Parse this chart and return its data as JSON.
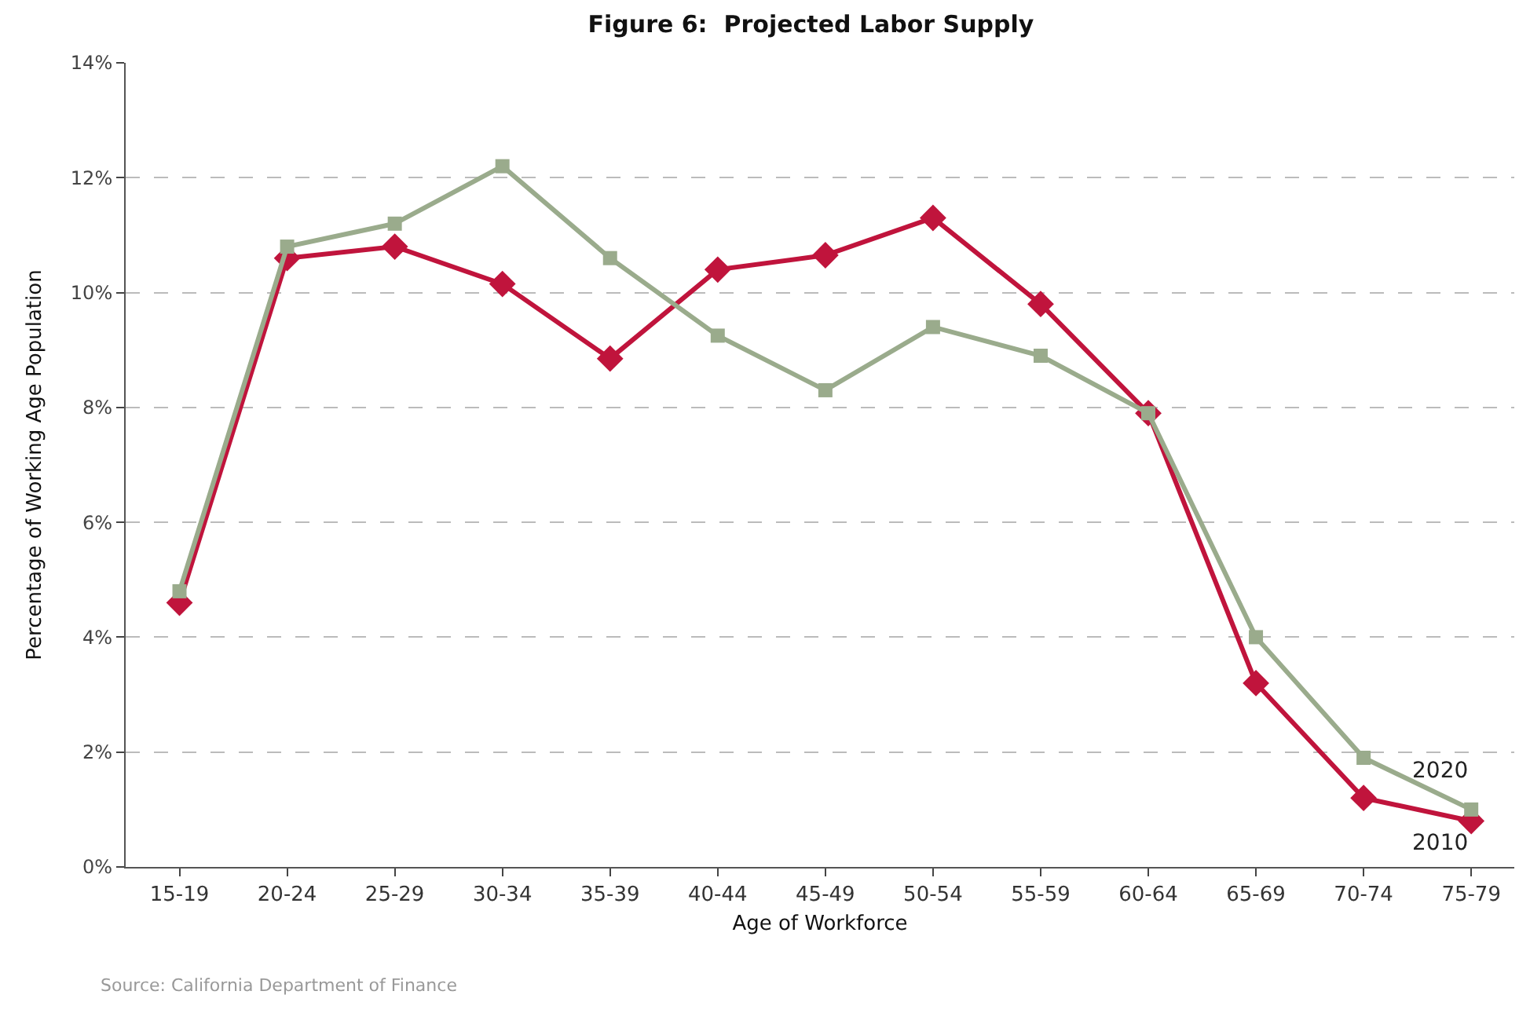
{
  "chart_data": {
    "type": "line",
    "title": "Figure 6:  Projected Labor Supply",
    "xlabel": "Age of Workforce",
    "ylabel": "Percentage of Working Age Population",
    "categories": [
      "15-19",
      "20-24",
      "25-29",
      "30-34",
      "35-39",
      "40-44",
      "45-49",
      "50-54",
      "55-59",
      "60-64",
      "65-69",
      "70-74",
      "75-79"
    ],
    "series": [
      {
        "name": "2010",
        "color": "#c0143c",
        "marker": "diamond",
        "values": [
          4.6,
          10.6,
          10.8,
          10.15,
          8.85,
          10.4,
          10.65,
          11.3,
          9.8,
          7.9,
          3.2,
          1.2,
          0.8
        ]
      },
      {
        "name": "2020",
        "color": "#9aab8c",
        "marker": "square",
        "values": [
          4.8,
          10.8,
          11.2,
          12.2,
          10.6,
          9.25,
          8.3,
          9.4,
          8.9,
          7.9,
          4.0,
          1.9,
          1.0
        ]
      }
    ],
    "ylim": [
      0,
      14
    ],
    "yticks": [
      {
        "value": 0,
        "label": "0%"
      },
      {
        "value": 2,
        "label": "2%"
      },
      {
        "value": 4,
        "label": "4%"
      },
      {
        "value": 6,
        "label": "6%"
      },
      {
        "value": 8,
        "label": "8%"
      },
      {
        "value": 10,
        "label": "10%"
      },
      {
        "value": 12,
        "label": "12%"
      },
      {
        "value": 14,
        "label": "14%"
      }
    ],
    "grid": "y",
    "legend": false,
    "line_style": "solid",
    "annotations": [
      "Source: California Department of Finance"
    ]
  }
}
